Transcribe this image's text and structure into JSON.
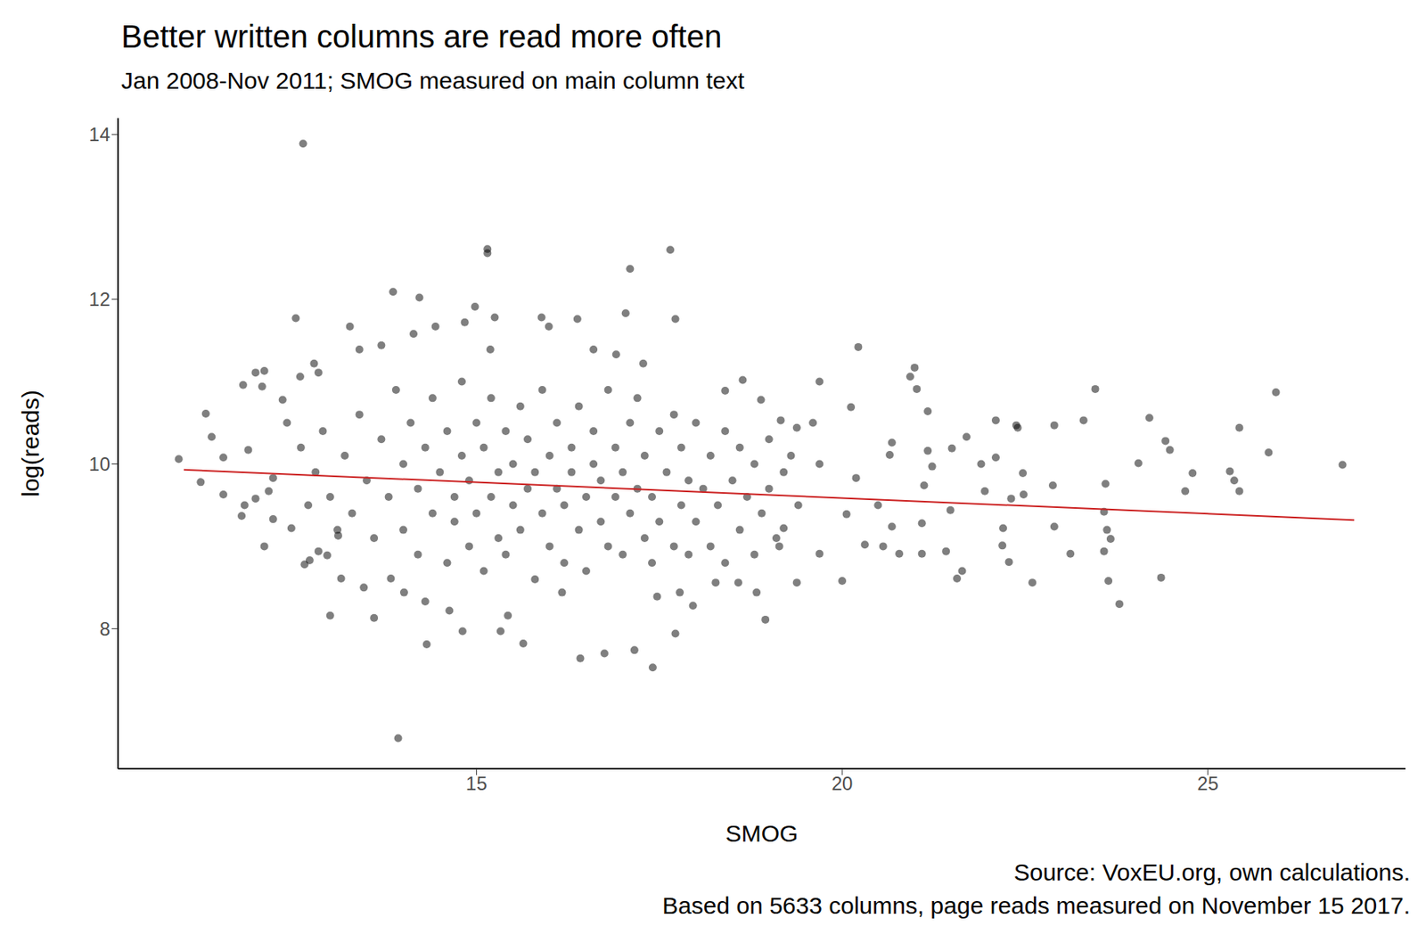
{
  "chart_data": {
    "type": "scatter",
    "title": "Better written columns are read more often",
    "subtitle": "Jan 2008-Nov 2011; SMOG measured on main column text",
    "x_label": "SMOG",
    "y_label": "log(reads)",
    "caption": [
      "Source: VoxEU.org, own calculations.",
      "Based on 5633 columns, page reads measured on November 15 2017."
    ],
    "xlim": [
      10.1,
      27.7
    ],
    "ylim": [
      6.3,
      14.2
    ],
    "xticks": [
      15,
      20,
      25
    ],
    "yticks": [
      8,
      10,
      12,
      14
    ],
    "grid": false,
    "series": [
      {
        "type": "scatter",
        "color": "#000000",
        "marker": "circle",
        "x": [
          12.63,
          15.15,
          15.15,
          17.65,
          17.1,
          13.86,
          14.22,
          12.53,
          15.25,
          14.98,
          15.89,
          17.04,
          17.72,
          13.93,
          17.41,
          16.42,
          17.16,
          16.75,
          14.32,
          14.81,
          13.0,
          13.6,
          18.95,
          23.79,
          24.36,
          22.6,
          23.64,
          20.0,
          21.64,
          21.57,
          26.84,
          25.93,
          25.43,
          25.3,
          25.36,
          25.43,
          24.79,
          24.69,
          25.83,
          24.2,
          24.42,
          24.48,
          24.05,
          23.46,
          23.3,
          23.58,
          23.62,
          23.67,
          23.58,
          23.6,
          22.9,
          22.88,
          23.12,
          22.9,
          22.38,
          22.4,
          22.48,
          22.47,
          22.31,
          22.28,
          22.2,
          22.1,
          22.1,
          21.95,
          21.9,
          22.19,
          21.5,
          21.48,
          21.42,
          21.7,
          21.17,
          21.09,
          21.12,
          21.17,
          21.09,
          21.23,
          20.99,
          21.02,
          20.93,
          20.68,
          20.65,
          20.68,
          20.78,
          20.56,
          20.49,
          20.22,
          20.12,
          20.19,
          20.06,
          20.31,
          19.69,
          19.6,
          19.69,
          19.69,
          19.38,
          19.16,
          19.38,
          10.93,
          11.3,
          11.38,
          11.23,
          11.54,
          11.54,
          11.81,
          11.79,
          11.88,
          11.98,
          12.1,
          12.07,
          12.1,
          12.16,
          12.22,
          11.98,
          11.83,
          12.22,
          12.47,
          12.35,
          12.41,
          12.59,
          12.78,
          12.84,
          12.65,
          12.72,
          12.84,
          12.96,
          13.11,
          13.15,
          13.27,
          13.4,
          13.46,
          13.7,
          13.83,
          14.14,
          14.01,
          14.44,
          14.3,
          14.63,
          14.84,
          15.19,
          15.43,
          15.64,
          15.33,
          16.17,
          15.99,
          16.38,
          16.6,
          16.91,
          17.28,
          17.47,
          17.78,
          17.96,
          17.72,
          18.27,
          18.4,
          18.64,
          18.58,
          18.89,
          18.83,
          19.14,
          19.2,
          13.2,
          13.3,
          13.4,
          13.5,
          13.6,
          13.7,
          13.8,
          13.9,
          14.0,
          14.0,
          14.1,
          14.2,
          14.2,
          14.3,
          14.4,
          14.4,
          14.5,
          14.6,
          14.6,
          14.7,
          14.7,
          14.8,
          14.8,
          14.9,
          14.9,
          15.0,
          15.0,
          15.1,
          15.1,
          15.2,
          15.2,
          15.3,
          15.3,
          15.4,
          15.4,
          15.5,
          15.5,
          15.6,
          15.6,
          15.7,
          15.7,
          15.8,
          15.8,
          15.9,
          15.9,
          16.0,
          16.0,
          16.1,
          16.1,
          16.2,
          16.2,
          16.3,
          16.3,
          16.4,
          16.4,
          16.5,
          16.5,
          16.6,
          16.6,
          16.7,
          16.7,
          16.8,
          16.8,
          16.9,
          16.9,
          17.0,
          17.0,
          17.1,
          17.1,
          17.2,
          17.2,
          17.3,
          17.3,
          17.4,
          17.4,
          17.5,
          17.5,
          17.6,
          17.7,
          17.7,
          17.8,
          17.8,
          17.9,
          17.9,
          18.0,
          18.0,
          18.1,
          18.2,
          18.2,
          18.3,
          18.4,
          18.4,
          18.5,
          18.6,
          18.6,
          18.7,
          18.8,
          18.8,
          18.9,
          19.0,
          19.0,
          19.1,
          19.2,
          19.3,
          19.4,
          12.8,
          12.9,
          13.0,
          13.1,
          12.6,
          12.7
        ],
        "values": [
          13.89,
          12.61,
          12.56,
          12.6,
          12.37,
          12.09,
          12.02,
          11.77,
          11.78,
          11.91,
          11.78,
          11.83,
          11.76,
          6.67,
          7.53,
          7.64,
          7.74,
          7.7,
          7.81,
          7.97,
          8.16,
          8.13,
          8.11,
          8.3,
          8.62,
          8.56,
          8.58,
          8.58,
          8.7,
          8.61,
          9.99,
          10.87,
          10.44,
          9.91,
          9.8,
          9.67,
          9.89,
          9.67,
          10.14,
          10.56,
          10.28,
          10.17,
          10.01,
          10.91,
          10.53,
          9.42,
          9.2,
          9.09,
          8.94,
          9.76,
          10.47,
          9.74,
          8.91,
          9.24,
          10.47,
          10.44,
          9.63,
          9.89,
          9.58,
          8.81,
          9.22,
          10.08,
          10.53,
          9.67,
          10.0,
          9.01,
          10.19,
          9.44,
          8.94,
          10.33,
          10.64,
          9.28,
          9.74,
          10.16,
          8.91,
          9.97,
          11.17,
          10.91,
          11.06,
          10.26,
          10.11,
          9.24,
          8.91,
          9.0,
          9.5,
          11.42,
          10.69,
          9.83,
          9.39,
          9.02,
          11.0,
          10.5,
          10.0,
          8.91,
          8.56,
          10.53,
          10.44,
          10.06,
          10.61,
          10.33,
          9.78,
          9.63,
          10.08,
          10.96,
          9.37,
          10.17,
          11.11,
          11.13,
          10.94,
          9.0,
          9.67,
          9.83,
          9.58,
          9.5,
          9.33,
          9.22,
          10.78,
          10.5,
          11.06,
          11.22,
          11.11,
          8.78,
          8.83,
          8.94,
          8.89,
          9.13,
          8.61,
          11.67,
          11.39,
          8.5,
          11.44,
          8.61,
          11.58,
          8.44,
          11.67,
          8.33,
          8.22,
          11.72,
          11.39,
          8.16,
          7.82,
          7.97,
          8.44,
          11.67,
          11.76,
          11.39,
          11.33,
          11.22,
          8.39,
          8.44,
          8.28,
          7.94,
          8.56,
          10.89,
          11.02,
          8.56,
          10.78,
          8.44,
          9.0,
          9.22,
          10.1,
          9.4,
          10.6,
          9.8,
          9.1,
          10.3,
          9.6,
          10.9,
          9.2,
          10.0,
          10.5,
          8.9,
          9.7,
          10.2,
          9.4,
          10.8,
          9.9,
          8.8,
          10.4,
          9.3,
          9.6,
          10.1,
          11.0,
          9.0,
          9.8,
          10.5,
          9.4,
          8.7,
          10.2,
          9.6,
          10.8,
          9.1,
          9.9,
          10.4,
          8.9,
          9.5,
          10.0,
          10.7,
          9.2,
          9.7,
          10.3,
          8.6,
          9.9,
          10.9,
          9.4,
          10.1,
          9.0,
          9.7,
          10.5,
          8.8,
          9.5,
          10.2,
          9.9,
          9.2,
          10.7,
          9.6,
          8.7,
          10.0,
          10.4,
          9.3,
          9.8,
          10.9,
          9.0,
          9.6,
          10.2,
          8.9,
          9.9,
          10.5,
          9.4,
          9.7,
          10.8,
          9.1,
          10.1,
          8.8,
          9.6,
          10.4,
          9.3,
          9.9,
          10.6,
          9.0,
          9.5,
          10.2,
          8.9,
          9.8,
          10.5,
          9.3,
          9.7,
          10.1,
          9.0,
          9.5,
          10.4,
          8.8,
          9.8,
          9.2,
          10.2,
          9.6,
          8.9,
          10.0,
          9.4,
          10.3,
          9.7,
          9.1,
          9.9,
          10.1,
          9.5,
          9.9,
          10.4,
          9.6,
          9.2,
          10.2,
          9.5
        ]
      },
      {
        "type": "line",
        "color": "#cc2222",
        "line_style": "solid",
        "x": [
          11,
          27
        ],
        "values": [
          9.93,
          9.32
        ]
      }
    ]
  }
}
